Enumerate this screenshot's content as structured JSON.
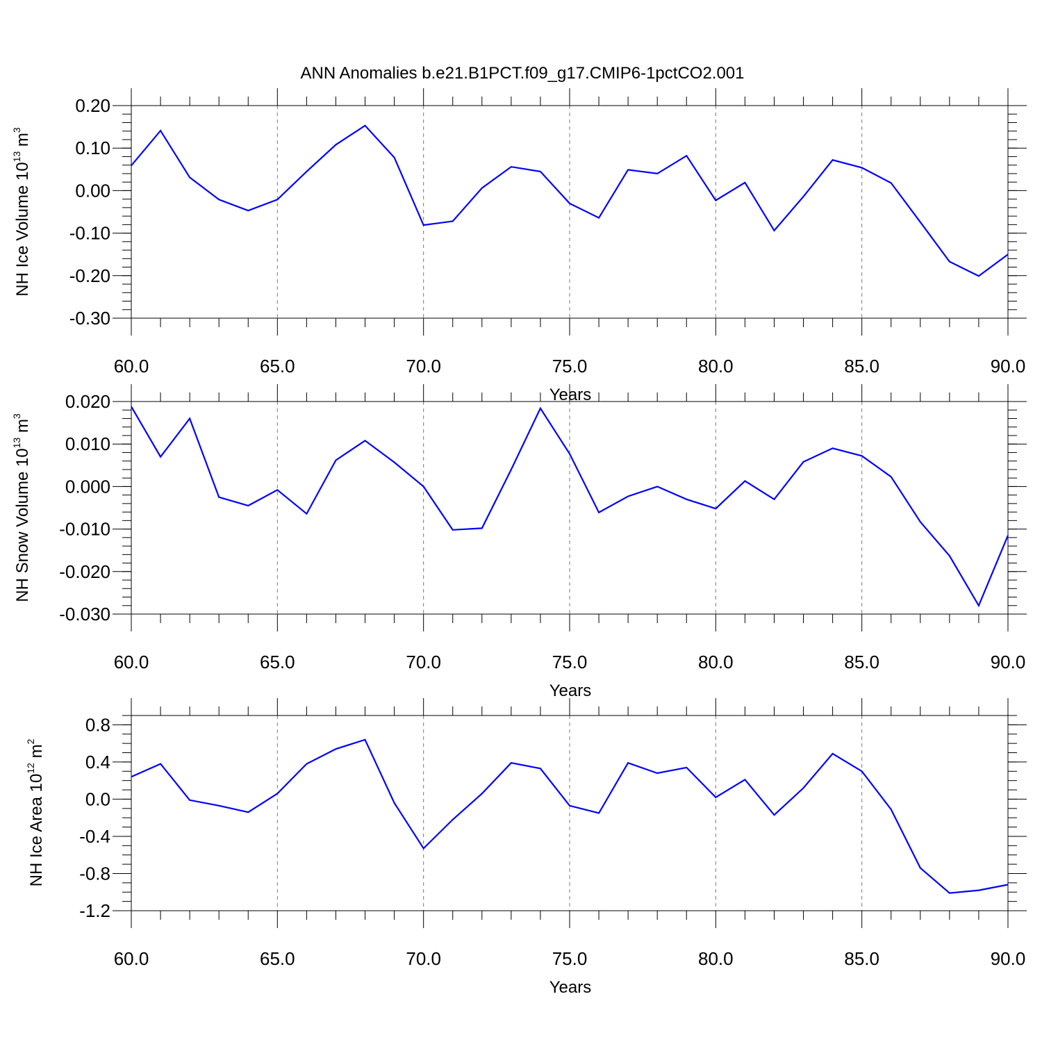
{
  "title": "ANN Anomalies b.e21.B1PCT.f09_g17.CMIP6-1pctCO2.001",
  "colors": {
    "series": "#0000ff",
    "frame": "#000000",
    "grid": "#777777"
  },
  "chart_data": [
    {
      "type": "line",
      "ylabel_main": "NH Ice Volume 10",
      "ylabel_sup": "13",
      "ylabel_tail": " m",
      "ylabel_sup2": "3",
      "xlabel": "Years",
      "xlim": [
        60,
        90
      ],
      "ylim": [
        -0.3,
        0.2
      ],
      "ylim_frame": [
        -0.3,
        0.2
      ],
      "x_ticks": [
        "60.0",
        "65.0",
        "70.0",
        "75.0",
        "80.0",
        "85.0",
        "90.0"
      ],
      "x_tick_values": [
        60,
        65,
        70,
        75,
        80,
        85,
        90
      ],
      "y_ticks": [
        "0.20",
        "0.10",
        "0.00",
        "-0.10",
        "-0.20",
        "-0.30"
      ],
      "y_tick_values": [
        0.2,
        0.1,
        0.0,
        -0.1,
        -0.2,
        -0.3
      ],
      "y_minor_step": 0.02,
      "grid_x": true,
      "x": [
        60,
        61,
        62,
        63,
        64,
        65,
        66,
        67,
        68,
        69,
        70,
        71,
        72,
        73,
        74,
        75,
        76,
        77,
        78,
        79,
        80,
        81,
        82,
        83,
        84,
        85,
        86,
        87,
        88,
        89,
        90
      ],
      "values": [
        0.059,
        0.141,
        0.031,
        -0.021,
        -0.047,
        -0.021,
        0.045,
        0.108,
        0.153,
        0.078,
        -0.081,
        -0.072,
        0.006,
        0.056,
        0.045,
        -0.03,
        -0.064,
        0.049,
        0.04,
        0.082,
        -0.023,
        0.019,
        -0.094,
        -0.014,
        0.072,
        0.054,
        0.018,
        -0.074,
        -0.167,
        -0.201,
        -0.15
      ]
    },
    {
      "type": "line",
      "ylabel_main": "NH Snow Volume 10",
      "ylabel_sup": "13",
      "ylabel_tail": " m",
      "ylabel_sup2": "3",
      "xlabel": "Years",
      "xlim": [
        60,
        90
      ],
      "ylim": [
        -0.03,
        0.02
      ],
      "ylim_frame": [
        -0.03,
        0.02
      ],
      "x_ticks": [
        "60.0",
        "65.0",
        "70.0",
        "75.0",
        "80.0",
        "85.0",
        "90.0"
      ],
      "x_tick_values": [
        60,
        65,
        70,
        75,
        80,
        85,
        90
      ],
      "y_ticks": [
        "0.020",
        "0.010",
        "0.000",
        "-0.010",
        "-0.020",
        "-0.030"
      ],
      "y_tick_values": [
        0.02,
        0.01,
        0.0,
        -0.01,
        -0.02,
        -0.03
      ],
      "y_minor_step": 0.002,
      "grid_x": true,
      "x": [
        60,
        61,
        62,
        63,
        64,
        65,
        66,
        67,
        68,
        69,
        70,
        71,
        72,
        73,
        74,
        75,
        76,
        77,
        78,
        79,
        80,
        81,
        82,
        83,
        84,
        85,
        86,
        87,
        88,
        89,
        90
      ],
      "values": [
        0.0188,
        0.007,
        0.016,
        -0.0025,
        -0.0045,
        -0.0008,
        -0.0064,
        0.0062,
        0.0108,
        0.0057,
        0.0,
        -0.0102,
        -0.0098,
        0.004,
        0.0184,
        0.0077,
        -0.0061,
        -0.0023,
        0.0,
        -0.003,
        -0.0052,
        0.0013,
        -0.003,
        0.0058,
        0.009,
        0.0072,
        0.0023,
        -0.0083,
        -0.0163,
        -0.028,
        -0.0115
      ]
    },
    {
      "type": "line",
      "ylabel_main": "NH Ice Area 10",
      "ylabel_sup": "12",
      "ylabel_tail": " m",
      "ylabel_sup2": "2",
      "xlabel": "Years",
      "xlim": [
        60,
        90
      ],
      "ylim": [
        -1.2,
        0.9
      ],
      "ylim_frame": [
        -1.2,
        0.9
      ],
      "x_ticks": [
        "60.0",
        "65.0",
        "70.0",
        "75.0",
        "80.0",
        "85.0",
        "90.0"
      ],
      "x_tick_values": [
        60,
        65,
        70,
        75,
        80,
        85,
        90
      ],
      "y_ticks": [
        "0.8",
        "0.4",
        "0.0",
        "-0.4",
        "-0.8",
        "-1.2"
      ],
      "y_tick_values": [
        0.8,
        0.4,
        0.0,
        -0.4,
        -0.8,
        -1.2
      ],
      "y_minor_step": 0.1,
      "grid_x": true,
      "x": [
        60,
        61,
        62,
        63,
        64,
        65,
        66,
        67,
        68,
        69,
        70,
        71,
        72,
        73,
        74,
        75,
        76,
        77,
        78,
        79,
        80,
        81,
        82,
        83,
        84,
        85,
        86,
        87,
        88,
        89,
        90
      ],
      "values": [
        0.24,
        0.38,
        -0.01,
        -0.07,
        -0.14,
        0.06,
        0.38,
        0.54,
        0.64,
        -0.04,
        -0.53,
        -0.22,
        0.06,
        0.39,
        0.33,
        -0.07,
        -0.15,
        0.39,
        0.28,
        0.34,
        0.02,
        0.21,
        -0.17,
        0.12,
        0.49,
        0.3,
        -0.11,
        -0.74,
        -1.01,
        -0.98,
        -0.92
      ]
    }
  ]
}
